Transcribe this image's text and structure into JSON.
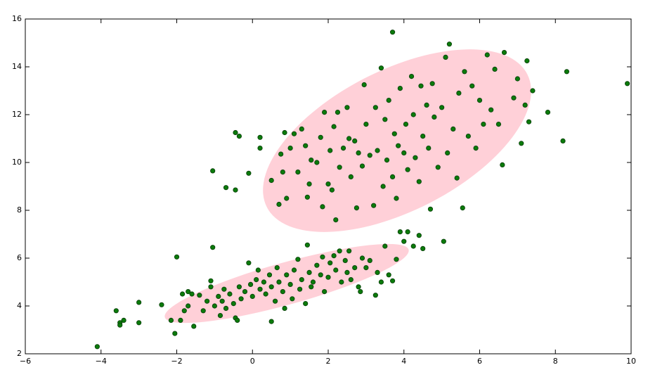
{
  "chart_data": {
    "type": "scatter",
    "xlim": [
      -6,
      10
    ],
    "ylim": [
      2,
      16
    ],
    "xticks": [
      {
        "value": -6,
        "label": "−6"
      },
      {
        "value": -4,
        "label": "−4"
      },
      {
        "value": -2,
        "label": "−2"
      },
      0,
      2,
      4,
      6,
      8,
      10
    ],
    "yticks": [
      2,
      4,
      6,
      8,
      10,
      12,
      14,
      16
    ],
    "series": [
      {
        "color": "#0b7a0b",
        "x": [
          -4.1,
          -3.6,
          -3.5,
          -3.5,
          -3.4,
          -3.0,
          -3.0,
          -2.4,
          -2.15,
          -2.05,
          -2.0,
          -1.9,
          -1.85,
          -1.8,
          -1.7,
          -1.7,
          -1.6,
          -1.55,
          -1.4,
          -1.3,
          -1.2,
          -1.1,
          -1.1,
          -1.05,
          -1.0,
          -0.9,
          -0.85,
          -0.8,
          -0.75,
          -0.7,
          -0.6,
          -0.5,
          -0.45,
          -0.4,
          -0.35,
          -0.3,
          -0.2,
          -0.1,
          -0.05,
          0.0,
          0.1,
          0.15,
          0.2,
          0.3,
          0.35,
          0.45,
          0.5,
          0.5,
          0.6,
          0.65,
          0.7,
          0.8,
          0.85,
          0.9,
          1.0,
          1.05,
          1.1,
          1.2,
          1.25,
          1.3,
          1.4,
          1.45,
          1.5,
          1.55,
          1.6,
          1.7,
          1.8,
          1.85,
          1.9,
          2.0,
          2.05,
          2.15,
          2.2,
          2.3,
          2.35,
          2.45,
          2.5,
          2.55,
          2.6,
          2.7,
          2.8,
          2.85,
          2.9,
          3.0,
          3.1,
          3.25,
          3.3,
          3.4,
          3.5,
          3.6,
          3.7,
          3.8,
          3.9,
          4.0,
          4.1,
          4.25,
          4.4,
          4.5,
          5.05,
          -1.05,
          -0.7,
          -0.45,
          -0.45,
          -0.35,
          -0.1,
          0.2,
          0.2,
          0.5,
          0.7,
          0.75,
          0.8,
          0.85,
          0.9,
          1.0,
          1.1,
          1.2,
          1.3,
          1.4,
          1.45,
          1.5,
          1.55,
          1.7,
          1.8,
          1.85,
          1.9,
          2.0,
          2.05,
          2.1,
          2.15,
          2.2,
          2.25,
          2.3,
          2.4,
          2.5,
          2.55,
          2.6,
          2.7,
          2.75,
          2.8,
          2.9,
          2.95,
          3.0,
          3.1,
          3.2,
          3.25,
          3.3,
          3.4,
          3.45,
          3.5,
          3.55,
          3.6,
          3.7,
          3.7,
          3.75,
          3.8,
          3.85,
          3.9,
          4.0,
          4.05,
          4.1,
          4.2,
          4.25,
          4.3,
          4.4,
          4.45,
          4.5,
          4.6,
          4.65,
          4.7,
          4.75,
          4.8,
          4.9,
          5.0,
          5.1,
          5.15,
          5.2,
          5.3,
          5.4,
          5.45,
          5.55,
          5.6,
          5.7,
          5.8,
          5.9,
          6.0,
          6.1,
          6.2,
          6.3,
          6.4,
          6.5,
          6.6,
          6.65,
          6.9,
          7.0,
          7.1,
          7.2,
          7.25,
          7.3,
          7.4,
          7.8,
          8.2,
          8.3,
          9.9
        ],
        "values": [
          2.3,
          3.8,
          3.3,
          3.2,
          3.4,
          4.15,
          3.3,
          4.05,
          3.4,
          2.85,
          6.05,
          3.4,
          4.5,
          3.8,
          4.6,
          4.0,
          4.5,
          3.15,
          4.45,
          3.8,
          4.2,
          5.05,
          4.8,
          6.45,
          4.0,
          4.4,
          3.6,
          4.2,
          4.7,
          3.9,
          4.5,
          4.1,
          3.5,
          3.4,
          4.8,
          4.3,
          4.6,
          5.8,
          4.9,
          4.4,
          5.1,
          5.5,
          4.7,
          5.0,
          4.5,
          5.3,
          3.35,
          4.8,
          4.2,
          5.6,
          5.0,
          4.6,
          3.9,
          5.3,
          4.9,
          4.3,
          5.5,
          5.95,
          4.7,
          5.1,
          4.1,
          6.55,
          5.4,
          4.8,
          5.0,
          5.7,
          5.3,
          6.05,
          4.6,
          5.2,
          5.8,
          6.1,
          5.5,
          6.3,
          5.0,
          5.9,
          5.4,
          6.3,
          5.1,
          5.6,
          4.8,
          4.6,
          6.0,
          5.6,
          5.9,
          4.45,
          5.4,
          5.0,
          6.5,
          5.3,
          5.05,
          5.95,
          7.1,
          6.7,
          7.1,
          6.5,
          6.95,
          6.4,
          6.7,
          9.65,
          8.95,
          8.85,
          11.25,
          11.1,
          9.55,
          11.05,
          10.6,
          9.25,
          8.25,
          10.35,
          9.6,
          11.25,
          8.5,
          10.6,
          11.2,
          9.6,
          11.4,
          10.7,
          8.55,
          9.1,
          10.1,
          10.0,
          11.05,
          8.15,
          12.1,
          9.1,
          10.5,
          8.85,
          11.5,
          7.6,
          12.1,
          9.8,
          10.6,
          12.3,
          11.0,
          9.4,
          10.9,
          8.1,
          10.4,
          9.85,
          13.25,
          11.6,
          10.3,
          8.2,
          12.3,
          10.5,
          13.95,
          9.0,
          11.8,
          10.1,
          12.6,
          9.4,
          15.45,
          11.2,
          8.5,
          10.7,
          13.1,
          10.4,
          11.6,
          9.7,
          13.6,
          12.0,
          10.2,
          9.2,
          13.2,
          11.1,
          12.4,
          10.6,
          8.05,
          13.3,
          11.9,
          9.8,
          12.3,
          14.4,
          10.4,
          14.95,
          11.4,
          9.35,
          12.9,
          8.1,
          13.8,
          11.1,
          13.2,
          10.6,
          12.6,
          11.6,
          14.5,
          12.2,
          13.9,
          11.6,
          9.9,
          14.6,
          12.7,
          13.5,
          10.8,
          12.4,
          14.25,
          11.7,
          13.0,
          12.1,
          10.9,
          13.8,
          13.3
        ]
      }
    ]
  }
}
